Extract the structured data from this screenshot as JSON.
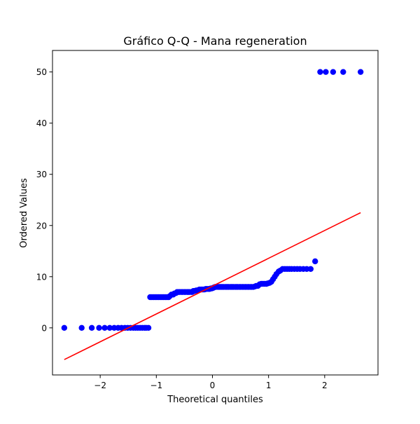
{
  "chart_data": {
    "type": "scatter",
    "title": "Gráfico Q-Q - Mana regeneration",
    "xlabel": "Theoretical quantiles",
    "ylabel": "Ordered Values",
    "xlim": [
      -2.85,
      2.95
    ],
    "ylim": [
      -9.2,
      54.2
    ],
    "xticks": [
      -2,
      -1,
      0,
      1,
      2
    ],
    "yticks": [
      0,
      10,
      20,
      30,
      40,
      50
    ],
    "xtick_labels": [
      "−2",
      "−1",
      "0",
      "1",
      "2"
    ],
    "ytick_labels": [
      "0",
      "10",
      "20",
      "30",
      "40",
      "50"
    ],
    "grid": false,
    "colors": {
      "points": "#0000ff",
      "fit_line": "#ff0000"
    },
    "fit_line": {
      "x": [
        -2.64,
        2.64
      ],
      "y": [
        -6.2,
        22.5
      ]
    },
    "points": [
      [
        -2.64,
        0
      ],
      [
        -2.33,
        0
      ],
      [
        -2.15,
        0
      ],
      [
        -2.02,
        0
      ],
      [
        -1.92,
        0
      ],
      [
        -1.83,
        0
      ],
      [
        -1.75,
        0
      ],
      [
        -1.68,
        0
      ],
      [
        -1.62,
        0
      ],
      [
        -1.56,
        0
      ],
      [
        -1.51,
        0
      ],
      [
        -1.46,
        0
      ],
      [
        -1.41,
        0
      ],
      [
        -1.37,
        0
      ],
      [
        -1.33,
        0
      ],
      [
        -1.29,
        0
      ],
      [
        -1.25,
        0
      ],
      [
        -1.21,
        0
      ],
      [
        -1.18,
        0
      ],
      [
        -1.14,
        0
      ],
      [
        -1.11,
        6
      ],
      [
        -1.08,
        6
      ],
      [
        -1.05,
        6
      ],
      [
        -1.02,
        6
      ],
      [
        -0.99,
        6
      ],
      [
        -0.96,
        6
      ],
      [
        -0.93,
        6
      ],
      [
        -0.9,
        6
      ],
      [
        -0.87,
        6
      ],
      [
        -0.84,
        6
      ],
      [
        -0.81,
        6
      ],
      [
        -0.78,
        6
      ],
      [
        -0.76,
        6.2
      ],
      [
        -0.73,
        6.5
      ],
      [
        -0.7,
        6.5
      ],
      [
        -0.68,
        6.7
      ],
      [
        -0.65,
        6.8
      ],
      [
        -0.63,
        7
      ],
      [
        -0.6,
        7
      ],
      [
        -0.58,
        7
      ],
      [
        -0.55,
        7
      ],
      [
        -0.53,
        7
      ],
      [
        -0.5,
        7
      ],
      [
        -0.48,
        7
      ],
      [
        -0.45,
        7
      ],
      [
        -0.43,
        7
      ],
      [
        -0.41,
        7
      ],
      [
        -0.38,
        7
      ],
      [
        -0.36,
        7
      ],
      [
        -0.34,
        7.2
      ],
      [
        -0.32,
        7.2
      ],
      [
        -0.29,
        7.3
      ],
      [
        -0.27,
        7.3
      ],
      [
        -0.25,
        7.4
      ],
      [
        -0.23,
        7.5
      ],
      [
        -0.2,
        7.5
      ],
      [
        -0.18,
        7.5
      ],
      [
        -0.16,
        7.5
      ],
      [
        -0.14,
        7.5
      ],
      [
        -0.12,
        7.6
      ],
      [
        -0.1,
        7.6
      ],
      [
        -0.07,
        7.6
      ],
      [
        -0.05,
        7.6
      ],
      [
        -0.03,
        7.7
      ],
      [
        -0.01,
        7.7
      ],
      [
        0.01,
        7.8
      ],
      [
        0.03,
        7.9
      ],
      [
        0.05,
        8
      ],
      [
        0.07,
        8
      ],
      [
        0.1,
        8
      ],
      [
        0.12,
        8
      ],
      [
        0.14,
        8
      ],
      [
        0.16,
        8
      ],
      [
        0.18,
        8
      ],
      [
        0.2,
        8
      ],
      [
        0.23,
        8
      ],
      [
        0.25,
        8
      ],
      [
        0.27,
        8
      ],
      [
        0.29,
        8
      ],
      [
        0.32,
        8
      ],
      [
        0.34,
        8
      ],
      [
        0.36,
        8
      ],
      [
        0.38,
        8
      ],
      [
        0.41,
        8
      ],
      [
        0.43,
        8
      ],
      [
        0.45,
        8
      ],
      [
        0.48,
        8
      ],
      [
        0.5,
        8
      ],
      [
        0.53,
        8
      ],
      [
        0.55,
        8
      ],
      [
        0.58,
        8
      ],
      [
        0.6,
        8
      ],
      [
        0.63,
        8
      ],
      [
        0.65,
        8
      ],
      [
        0.68,
        8
      ],
      [
        0.7,
        8
      ],
      [
        0.73,
        8
      ],
      [
        0.76,
        8.1
      ],
      [
        0.78,
        8.2
      ],
      [
        0.81,
        8.2
      ],
      [
        0.84,
        8.5
      ],
      [
        0.87,
        8.6
      ],
      [
        0.9,
        8.6
      ],
      [
        0.93,
        8.6
      ],
      [
        0.96,
        8.6
      ],
      [
        0.99,
        8.7
      ],
      [
        1.02,
        8.8
      ],
      [
        1.05,
        9
      ],
      [
        1.08,
        9.5
      ],
      [
        1.11,
        10
      ],
      [
        1.14,
        10.5
      ],
      [
        1.18,
        11
      ],
      [
        1.21,
        11.2
      ],
      [
        1.25,
        11.5
      ],
      [
        1.29,
        11.5
      ],
      [
        1.33,
        11.5
      ],
      [
        1.37,
        11.5
      ],
      [
        1.41,
        11.5
      ],
      [
        1.46,
        11.5
      ],
      [
        1.51,
        11.5
      ],
      [
        1.56,
        11.5
      ],
      [
        1.62,
        11.5
      ],
      [
        1.68,
        11.5
      ],
      [
        1.75,
        11.5
      ],
      [
        1.83,
        13
      ],
      [
        1.92,
        50
      ],
      [
        2.02,
        50
      ],
      [
        2.15,
        50
      ],
      [
        2.33,
        50
      ],
      [
        2.64,
        50
      ]
    ]
  }
}
